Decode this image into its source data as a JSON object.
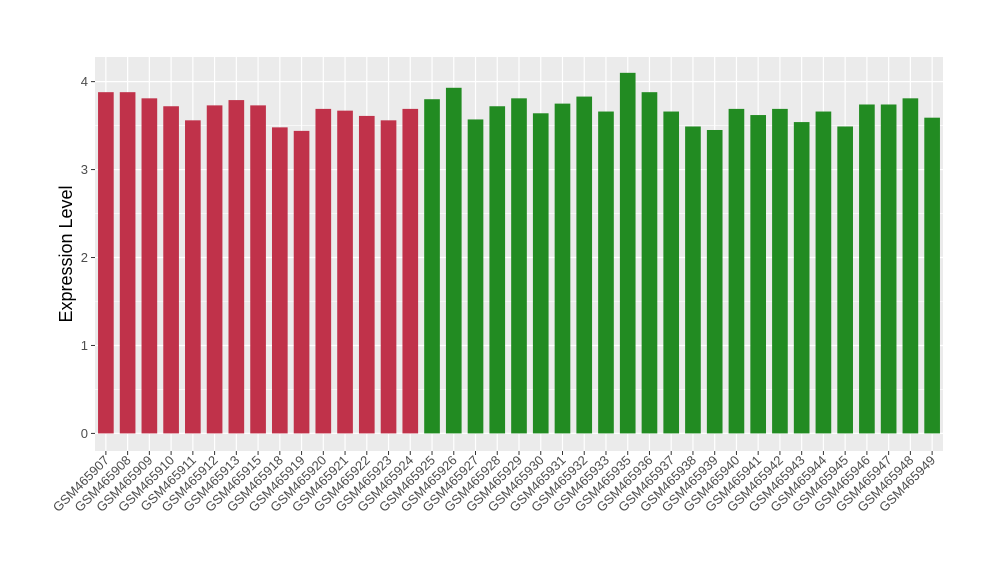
{
  "chart_data": {
    "type": "bar",
    "ylabel": "Expression Level",
    "xlabel": "",
    "title": "",
    "ylim": [
      -0.2,
      4.28
    ],
    "yticks": [
      0,
      1,
      2,
      3,
      4
    ],
    "grid": true,
    "legend": "none",
    "colors": {
      "panel_background": "#ebebeb",
      "grid": "#ffffff",
      "group_1": "#c0324a",
      "group_2": "#228b22"
    },
    "categories": [
      "GSM465907",
      "GSM465908",
      "GSM465909",
      "GSM465910",
      "GSM465911",
      "GSM465912",
      "GSM465913",
      "GSM465915",
      "GSM465918",
      "GSM465919",
      "GSM465920",
      "GSM465921",
      "GSM465922",
      "GSM465923",
      "GSM465924",
      "GSM465925",
      "GSM465926",
      "GSM465927",
      "GSM465928",
      "GSM465929",
      "GSM465930",
      "GSM465931",
      "GSM465932",
      "GSM465933",
      "GSM465935",
      "GSM465936",
      "GSM465937",
      "GSM465938",
      "GSM465939",
      "GSM465940",
      "GSM465941",
      "GSM465942",
      "GSM465943",
      "GSM465944",
      "GSM465945",
      "GSM465946",
      "GSM465947",
      "GSM465948",
      "GSM465949"
    ],
    "values": [
      3.88,
      3.88,
      3.81,
      3.72,
      3.56,
      3.73,
      3.79,
      3.73,
      3.48,
      3.44,
      3.69,
      3.67,
      3.61,
      3.56,
      3.69,
      3.8,
      3.93,
      3.57,
      3.72,
      3.81,
      3.64,
      3.75,
      3.83,
      3.66,
      4.1,
      3.88,
      3.66,
      3.49,
      3.45,
      3.69,
      3.62,
      3.69,
      3.54,
      3.66,
      3.49,
      3.74,
      3.74,
      3.81,
      3.59
    ],
    "groups": [
      "group_1",
      "group_1",
      "group_1",
      "group_1",
      "group_1",
      "group_1",
      "group_1",
      "group_1",
      "group_1",
      "group_1",
      "group_1",
      "group_1",
      "group_1",
      "group_1",
      "group_1",
      "group_2",
      "group_2",
      "group_2",
      "group_2",
      "group_2",
      "group_2",
      "group_2",
      "group_2",
      "group_2",
      "group_2",
      "group_2",
      "group_2",
      "group_2",
      "group_2",
      "group_2",
      "group_2",
      "group_2",
      "group_2",
      "group_2",
      "group_2",
      "group_2",
      "group_2",
      "group_2",
      "group_2"
    ]
  }
}
